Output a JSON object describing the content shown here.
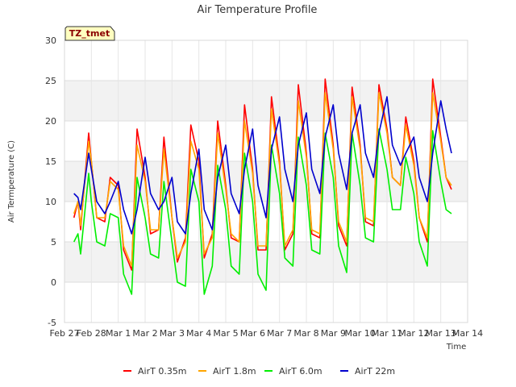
{
  "chart_data": {
    "type": "line",
    "title": "Air Temperature Profile",
    "xlabel": "Time",
    "ylabel": "Air Termperature (C)",
    "timezone_label": "TZ_tmet",
    "ylim": [
      -5,
      30
    ],
    "yticks": [
      -5,
      0,
      5,
      10,
      15,
      20,
      25,
      30
    ],
    "xlim": [
      0,
      15
    ],
    "xticks": [
      {
        "x": 0,
        "label": "Feb 27"
      },
      {
        "x": 1,
        "label": "Feb 28"
      },
      {
        "x": 2,
        "label": "Mar 1"
      },
      {
        "x": 3,
        "label": "Mar 2"
      },
      {
        "x": 4,
        "label": "Mar 3"
      },
      {
        "x": 5,
        "label": "Mar 4"
      },
      {
        "x": 6,
        "label": "Mar 5"
      },
      {
        "x": 7,
        "label": "Mar 6"
      },
      {
        "x": 8,
        "label": "Mar 7"
      },
      {
        "x": 9,
        "label": "Mar 8"
      },
      {
        "x": 10,
        "label": "Mar 9"
      },
      {
        "x": 11,
        "label": "Mar 10"
      },
      {
        "x": 12,
        "label": "Mar 11"
      },
      {
        "x": 13,
        "label": "Mar 12"
      },
      {
        "x": 14,
        "label": "Mar 13"
      },
      {
        "x": 15,
        "label": "Mar 14"
      }
    ],
    "grid": true,
    "legend_position": "bottom",
    "series": [
      {
        "name": "AirT 0.35m",
        "color": "#ff0000",
        "x": [
          0.35,
          0.5,
          0.6,
          0.9,
          1.0,
          1.2,
          1.5,
          1.7,
          2.0,
          2.2,
          2.5,
          2.7,
          3.0,
          3.2,
          3.5,
          3.7,
          4.0,
          4.2,
          4.5,
          4.7,
          5.0,
          5.2,
          5.5,
          5.7,
          6.0,
          6.2,
          6.5,
          6.7,
          7.0,
          7.2,
          7.5,
          7.7,
          8.0,
          8.2,
          8.5,
          8.7,
          9.0,
          9.2,
          9.5,
          9.7,
          10.0,
          10.2,
          10.5,
          10.7,
          11.0,
          11.2,
          11.5,
          11.7,
          12.0,
          12.2,
          12.5,
          12.7,
          13.0,
          13.2,
          13.5,
          13.7,
          14.0,
          14.2,
          14.4
        ],
        "y": [
          8,
          10,
          6.5,
          18.5,
          15,
          8,
          7.5,
          13,
          12,
          4,
          1.5,
          19,
          13,
          6,
          6.5,
          18,
          8,
          2.5,
          5.5,
          19.5,
          15,
          3,
          6,
          20,
          12,
          5.5,
          5,
          22,
          14,
          4,
          4,
          23,
          15,
          4,
          6,
          24.5,
          16,
          6,
          5.5,
          25.2,
          17,
          7,
          4.5,
          24.2,
          17,
          7.5,
          7,
          24.5,
          19,
          13,
          12,
          20.5,
          15,
          8,
          5,
          25.2,
          18,
          13,
          11.5
        ]
      },
      {
        "name": "AirT 1.8m",
        "color": "#ffa500",
        "x": [
          0.35,
          0.5,
          0.6,
          0.9,
          1.0,
          1.2,
          1.5,
          1.7,
          2.0,
          2.2,
          2.5,
          2.7,
          3.0,
          3.2,
          3.5,
          3.7,
          4.0,
          4.2,
          4.5,
          4.7,
          5.0,
          5.2,
          5.5,
          5.7,
          6.0,
          6.2,
          6.5,
          6.7,
          7.0,
          7.2,
          7.5,
          7.7,
          8.0,
          8.2,
          8.5,
          8.7,
          9.0,
          9.2,
          9.5,
          9.7,
          10.0,
          10.2,
          10.5,
          10.7,
          11.0,
          11.2,
          11.5,
          11.7,
          12.0,
          12.2,
          12.5,
          12.7,
          13.0,
          13.2,
          13.5,
          13.7,
          14.0,
          14.2,
          14.4
        ],
        "y": [
          8.5,
          10,
          7,
          17.5,
          15,
          8,
          8,
          12.5,
          11.5,
          4.5,
          2,
          17,
          12.5,
          6.5,
          6.5,
          16.5,
          8,
          3,
          5,
          17.5,
          14,
          3.5,
          5.5,
          18.5,
          11.5,
          6,
          5,
          20,
          13.5,
          4.5,
          4.5,
          21.5,
          14.5,
          4.5,
          6.5,
          22.5,
          15.5,
          6.5,
          6,
          23.5,
          16.5,
          7.5,
          5,
          23,
          16.5,
          8,
          7.5,
          23.5,
          18.5,
          13,
          12,
          19.5,
          14.5,
          8,
          5.5,
          23.5,
          17.5,
          13,
          12
        ]
      },
      {
        "name": "AirT 6.0m",
        "color": "#00ee00",
        "x": [
          0.35,
          0.5,
          0.6,
          0.9,
          1.0,
          1.2,
          1.5,
          1.7,
          2.0,
          2.2,
          2.5,
          2.7,
          3.0,
          3.2,
          3.5,
          3.7,
          4.0,
          4.2,
          4.5,
          4.7,
          5.0,
          5.2,
          5.5,
          5.7,
          6.0,
          6.2,
          6.5,
          6.7,
          7.0,
          7.2,
          7.5,
          7.7,
          8.0,
          8.2,
          8.5,
          8.7,
          9.0,
          9.2,
          9.5,
          9.7,
          10.0,
          10.2,
          10.5,
          10.7,
          11.0,
          11.2,
          11.5,
          11.7,
          12.0,
          12.2,
          12.5,
          12.7,
          13.0,
          13.2,
          13.5,
          13.7,
          14.0,
          14.2,
          14.4
        ],
        "y": [
          5,
          6,
          3.5,
          13.5,
          10,
          5,
          4.5,
          8.5,
          8,
          1,
          -1.5,
          13,
          8,
          3.5,
          3,
          12.5,
          5,
          0,
          -0.5,
          14,
          10,
          -1.5,
          2,
          14.5,
          9,
          2,
          1,
          16,
          10,
          1,
          -1,
          17,
          11,
          3,
          2,
          18,
          12,
          4,
          3.5,
          18.5,
          13,
          4.5,
          1.2,
          18.5,
          12,
          5.5,
          5,
          19,
          14,
          9,
          9,
          15.5,
          11,
          5,
          2,
          18.8,
          12.5,
          9,
          8.5
        ]
      },
      {
        "name": "AirT 22m",
        "color": "#0000cd",
        "x": [
          0.35,
          0.5,
          0.6,
          0.9,
          1.0,
          1.2,
          1.5,
          1.7,
          2.0,
          2.2,
          2.5,
          2.7,
          3.0,
          3.2,
          3.5,
          3.7,
          4.0,
          4.2,
          4.5,
          4.7,
          5.0,
          5.2,
          5.5,
          5.7,
          6.0,
          6.2,
          6.5,
          6.7,
          7.0,
          7.2,
          7.5,
          7.7,
          8.0,
          8.2,
          8.5,
          8.7,
          9.0,
          9.2,
          9.5,
          9.7,
          10.0,
          10.2,
          10.5,
          10.7,
          11.0,
          11.2,
          11.5,
          11.7,
          12.0,
          12.2,
          12.5,
          12.7,
          13.0,
          13.2,
          13.5,
          13.7,
          14.0,
          14.2,
          14.4
        ],
        "y": [
          11,
          10.5,
          9,
          16,
          14,
          10,
          8.5,
          10,
          12.5,
          9,
          6,
          9,
          15.5,
          11,
          9,
          10,
          13,
          7.5,
          6,
          11,
          16.5,
          9,
          6.5,
          13,
          17,
          11,
          8.5,
          14,
          19,
          12,
          8,
          16.5,
          20.5,
          14,
          10,
          17,
          21,
          14,
          11,
          18,
          22,
          16,
          11.5,
          18.5,
          22,
          16,
          13,
          18.5,
          23,
          17,
          14.5,
          16,
          18,
          13,
          10,
          16,
          22.5,
          19,
          16
        ]
      }
    ]
  }
}
